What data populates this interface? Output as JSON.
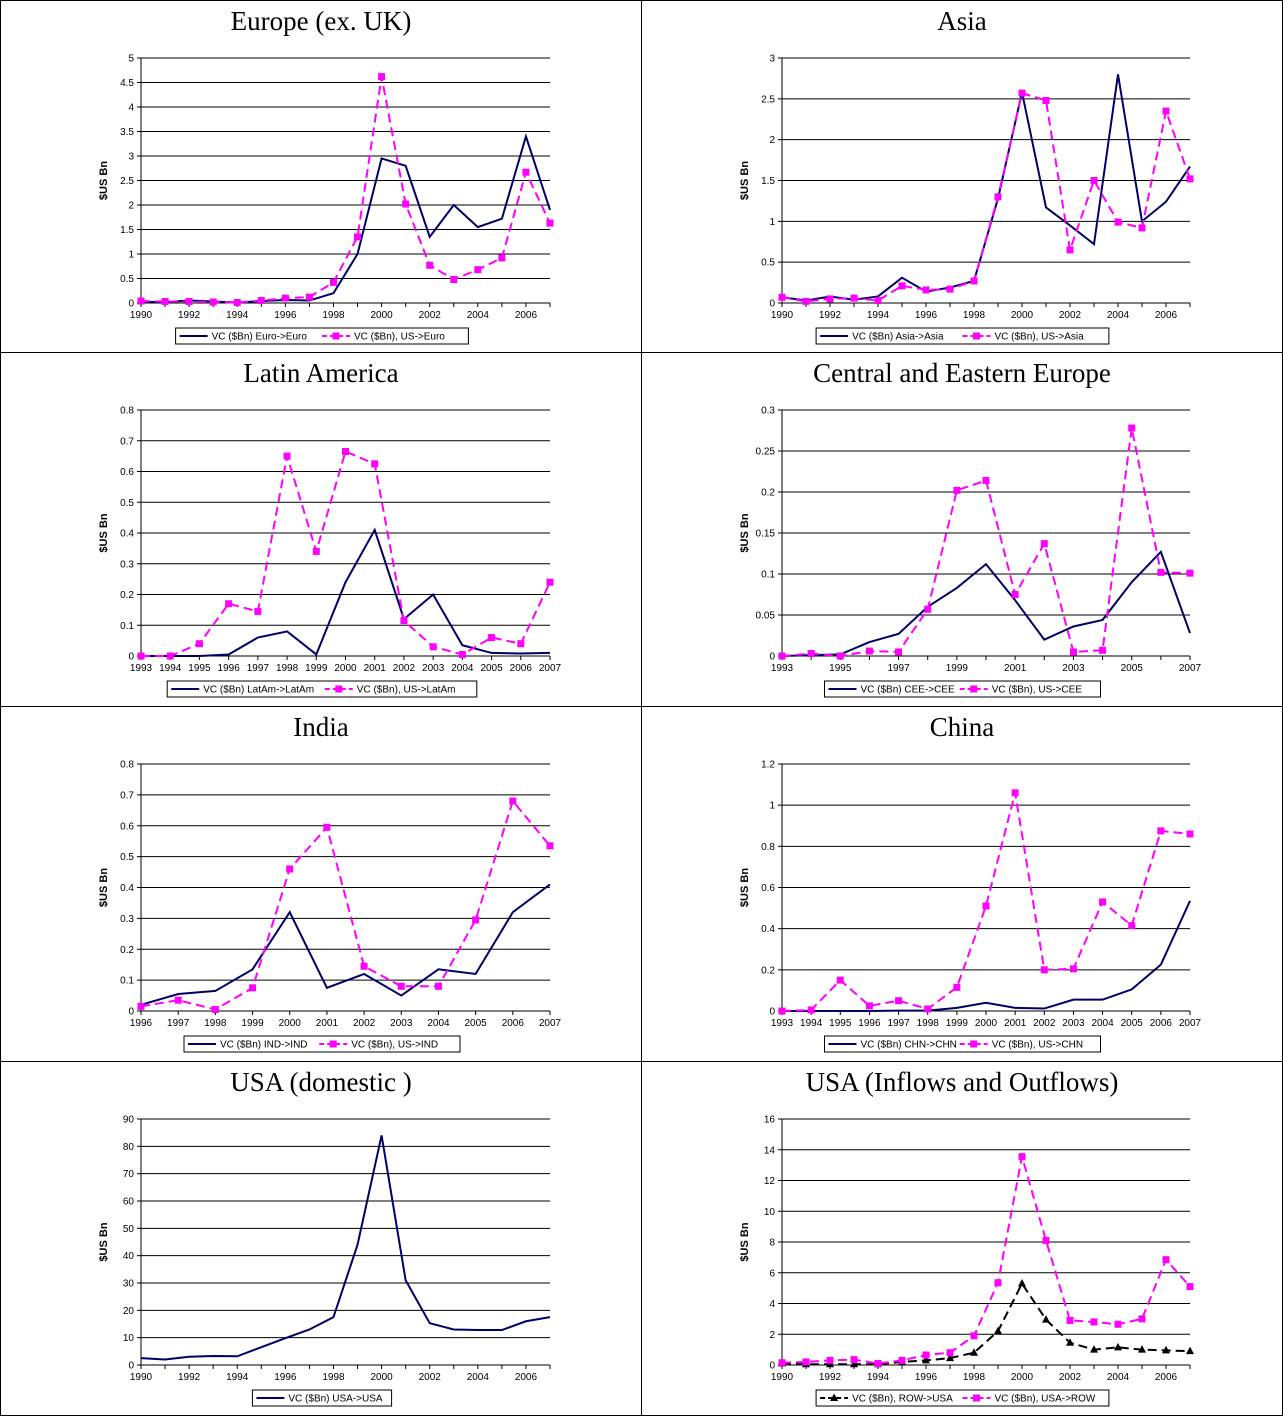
{
  "colors": {
    "navy": "#000066",
    "magenta": "#ff00ff",
    "black": "#000000"
  },
  "panels": [
    {
      "title": "Europe (ex. UK)",
      "chart_data": {
        "type": "line",
        "ylabel": "$US Bn",
        "x": [
          1990,
          1991,
          1992,
          1993,
          1994,
          1995,
          1996,
          1997,
          1998,
          1999,
          2000,
          2001,
          2002,
          2003,
          2004,
          2005,
          2006,
          2007
        ],
        "x_tick_labels": [
          "1990",
          "1992",
          "1994",
          "1996",
          "1998",
          "2000",
          "2002",
          "2004",
          "2006"
        ],
        "ylim": [
          0,
          5
        ],
        "y_ticks": [
          0,
          0.5,
          1,
          1.5,
          2,
          2.5,
          3,
          3.5,
          4,
          4.5,
          5
        ],
        "grid": true,
        "legend_position": "bottom",
        "series": [
          {
            "name": "VC ($Bn) Euro->Euro",
            "style": "solid",
            "marker": "none",
            "color": "#000066",
            "values": [
              0.02,
              0.02,
              0.05,
              0.03,
              0.01,
              0.04,
              0.06,
              0.05,
              0.2,
              1.0,
              2.95,
              2.8,
              1.35,
              2.0,
              1.55,
              1.72,
              3.4,
              1.9
            ]
          },
          {
            "name": "VC  ($Bn), US->Euro",
            "style": "dashed",
            "marker": "square",
            "color": "#ff00ff",
            "values": [
              0.04,
              0.03,
              0.03,
              0.02,
              0.01,
              0.05,
              0.1,
              0.12,
              0.42,
              1.35,
              4.62,
              2.02,
              0.77,
              0.48,
              0.68,
              0.92,
              2.67,
              1.63
            ]
          }
        ]
      }
    },
    {
      "title": "Asia",
      "chart_data": {
        "type": "line",
        "ylabel": "$US Bn",
        "x": [
          1990,
          1991,
          1992,
          1993,
          1994,
          1995,
          1996,
          1997,
          1998,
          1999,
          2000,
          2001,
          2002,
          2003,
          2004,
          2005,
          2006,
          2007
        ],
        "x_tick_labels": [
          "1990",
          "1992",
          "1994",
          "1996",
          "1998",
          "2000",
          "2002",
          "2004",
          "2006"
        ],
        "ylim": [
          0,
          3
        ],
        "y_ticks": [
          0,
          0.5,
          1,
          1.5,
          2,
          2.5,
          3
        ],
        "grid": true,
        "legend_position": "bottom",
        "series": [
          {
            "name": "VC ($Bn) Asia->Asia",
            "style": "solid",
            "marker": "none",
            "color": "#000066",
            "values": [
              0.07,
              0.03,
              0.08,
              0.04,
              0.08,
              0.31,
              0.14,
              0.19,
              0.27,
              1.28,
              2.58,
              1.17,
              0.95,
              0.72,
              2.8,
              1.0,
              1.24,
              1.67
            ]
          },
          {
            "name": "VC  ($Bn), US->Asia",
            "style": "dashed",
            "marker": "square",
            "color": "#ff00ff",
            "values": [
              0.07,
              0.02,
              0.05,
              0.06,
              0.03,
              0.21,
              0.16,
              0.17,
              0.27,
              1.3,
              2.57,
              2.48,
              0.65,
              1.5,
              0.99,
              0.92,
              2.35,
              1.52
            ]
          }
        ]
      }
    },
    {
      "title": "Latin America",
      "chart_data": {
        "type": "line",
        "ylabel": "$US Bn",
        "x": [
          1993,
          1994,
          1995,
          1996,
          1997,
          1998,
          1999,
          2000,
          2001,
          2002,
          2003,
          2004,
          2005,
          2006,
          2007
        ],
        "x_tick_labels": [
          "1993",
          "1994",
          "1995",
          "1996",
          "1997",
          "1998",
          "1999",
          "2000",
          "2001",
          "2002",
          "2003",
          "2004",
          "2005",
          "2006",
          "2007"
        ],
        "ylim": [
          0,
          0.8
        ],
        "y_ticks": [
          0,
          0.1,
          0.2,
          0.3,
          0.4,
          0.5,
          0.6,
          0.7,
          0.8
        ],
        "grid": true,
        "legend_position": "bottom",
        "series": [
          {
            "name": "VC ($Bn) LatAm->LatAm",
            "style": "solid",
            "marker": "none",
            "color": "#000066",
            "values": [
              0,
              0,
              0,
              0.005,
              0.06,
              0.08,
              0.005,
              0.24,
              0.41,
              0.12,
              0.2,
              0.035,
              0.01,
              0.008,
              0.01
            ]
          },
          {
            "name": "VC  ($Bn), US->LatAm",
            "style": "dashed",
            "marker": "square",
            "color": "#ff00ff",
            "values": [
              0,
              0,
              0.04,
              0.17,
              0.145,
              0.65,
              0.34,
              0.665,
              0.625,
              0.115,
              0.03,
              0.005,
              0.06,
              0.04,
              0.24
            ]
          }
        ]
      }
    },
    {
      "title": "Central and Eastern Europe",
      "chart_data": {
        "type": "line",
        "ylabel": "$US Bn",
        "x": [
          1993,
          1994,
          1995,
          1996,
          1997,
          1998,
          1999,
          2000,
          2001,
          2002,
          2003,
          2004,
          2005,
          2006,
          2007
        ],
        "x_tick_labels": [
          "1993",
          "1995",
          "1997",
          "1999",
          "2001",
          "2003",
          "2005",
          "2007"
        ],
        "ylim": [
          0,
          0.3
        ],
        "y_ticks": [
          0,
          0.05,
          0.1,
          0.15,
          0.2,
          0.25,
          0.3
        ],
        "grid": true,
        "legend_position": "bottom",
        "series": [
          {
            "name": "VC ($Bn) CEE->CEE",
            "style": "solid",
            "marker": "none",
            "color": "#000066",
            "values": [
              0,
              0.001,
              0.002,
              0.017,
              0.027,
              0.06,
              0.083,
              0.112,
              0.068,
              0.02,
              0.036,
              0.044,
              0.09,
              0.127,
              0.028
            ]
          },
          {
            "name": "VC  ($Bn), US->CEE",
            "style": "dashed",
            "marker": "square",
            "color": "#ff00ff",
            "values": [
              0,
              0.003,
              0,
              0.006,
              0.005,
              0.057,
              0.202,
              0.214,
              0.075,
              0.137,
              0.005,
              0.007,
              0.278,
              0.102,
              0.101
            ]
          }
        ]
      }
    },
    {
      "title": "India",
      "chart_data": {
        "type": "line",
        "ylabel": "$US Bn",
        "x": [
          1996,
          1997,
          1998,
          1999,
          2000,
          2001,
          2002,
          2003,
          2004,
          2005,
          2006,
          2007
        ],
        "x_tick_labels": [
          "1996",
          "1997",
          "1998",
          "1999",
          "2000",
          "2001",
          "2002",
          "2003",
          "2004",
          "2005",
          "2006",
          "2007"
        ],
        "ylim": [
          0,
          0.8
        ],
        "y_ticks": [
          0,
          0.1,
          0.2,
          0.3,
          0.4,
          0.5,
          0.6,
          0.7,
          0.8
        ],
        "grid": true,
        "legend_position": "bottom",
        "series": [
          {
            "name": "VC ($Bn) IND->IND",
            "style": "solid",
            "marker": "none",
            "color": "#000066",
            "values": [
              0.02,
              0.055,
              0.065,
              0.135,
              0.32,
              0.075,
              0.12,
              0.05,
              0.135,
              0.12,
              0.32,
              0.41
            ]
          },
          {
            "name": "VC  ($Bn), US->IND",
            "style": "dashed",
            "marker": "square",
            "color": "#ff00ff",
            "values": [
              0.015,
              0.035,
              0.005,
              0.075,
              0.46,
              0.595,
              0.145,
              0.08,
              0.08,
              0.295,
              0.68,
              0.535
            ]
          }
        ]
      }
    },
    {
      "title": "China",
      "chart_data": {
        "type": "line",
        "ylabel": "$US Bn",
        "x": [
          1993,
          1994,
          1995,
          1996,
          1997,
          1998,
          1999,
          2000,
          2001,
          2002,
          2003,
          2004,
          2005,
          2006,
          2007
        ],
        "x_tick_labels": [
          "1993",
          "1994",
          "1995",
          "1996",
          "1997",
          "1998",
          "1999",
          "2000",
          "2001",
          "2002",
          "2003",
          "2004",
          "2005",
          "2006",
          "2007"
        ],
        "ylim": [
          0,
          1.2
        ],
        "y_ticks": [
          0,
          0.2,
          0.4,
          0.6,
          0.8,
          1,
          1.2
        ],
        "grid": true,
        "legend_position": "bottom",
        "series": [
          {
            "name": "VC ($Bn) CHN->CHN",
            "style": "solid",
            "marker": "none",
            "color": "#000066",
            "values": [
              0,
              0,
              0,
              0,
              0.002,
              0.002,
              0.015,
              0.04,
              0.015,
              0.012,
              0.055,
              0.055,
              0.105,
              0.225,
              0.535
            ]
          },
          {
            "name": "VC  ($Bn), US->CHN",
            "style": "dashed",
            "marker": "square",
            "color": "#ff00ff",
            "values": [
              0,
              0.005,
              0.15,
              0.025,
              0.05,
              0.01,
              0.115,
              0.51,
              1.06,
              0.2,
              0.205,
              0.53,
              0.415,
              0.875,
              0.86
            ]
          }
        ]
      }
    },
    {
      "title": "USA (domestic )",
      "chart_data": {
        "type": "line",
        "ylabel": "$US Bn",
        "x": [
          1990,
          1991,
          1992,
          1993,
          1994,
          1995,
          1996,
          1997,
          1998,
          1999,
          2000,
          2001,
          2002,
          2003,
          2004,
          2005,
          2006,
          2007
        ],
        "x_tick_labels": [
          "1990",
          "1992",
          "1994",
          "1996",
          "1998",
          "2000",
          "2002",
          "2004",
          "2006"
        ],
        "ylim": [
          0,
          90
        ],
        "y_ticks": [
          0,
          10,
          20,
          30,
          40,
          50,
          60,
          70,
          80,
          90
        ],
        "grid": true,
        "legend_position": "bottom",
        "series": [
          {
            "name": "VC ($Bn) USA->USA",
            "style": "solid",
            "marker": "none",
            "color": "#000066",
            "values": [
              2.5,
              2.0,
              3.0,
              3.3,
              3.2,
              6.5,
              9.8,
              13.0,
              17.5,
              44.0,
              84.0,
              31.0,
              15.3,
              13.0,
              12.8,
              12.8,
              16.0,
              17.5
            ]
          }
        ]
      }
    },
    {
      "title": "USA (Inflows and Outflows)",
      "chart_data": {
        "type": "line",
        "ylabel": "$US Bn",
        "x": [
          1990,
          1991,
          1992,
          1993,
          1994,
          1995,
          1996,
          1997,
          1998,
          1999,
          2000,
          2001,
          2002,
          2003,
          2004,
          2005,
          2006,
          2007
        ],
        "x_tick_labels": [
          "1990",
          "1992",
          "1994",
          "1996",
          "1998",
          "2000",
          "2002",
          "2004",
          "2006"
        ],
        "ylim": [
          0,
          16
        ],
        "y_ticks": [
          0,
          2,
          4,
          6,
          8,
          10,
          12,
          14,
          16
        ],
        "grid": true,
        "legend_position": "bottom",
        "series": [
          {
            "name": "VC  ($Bn), ROW->USA",
            "style": "dashed",
            "marker": "triangle",
            "color": "#000000",
            "values": [
              0.1,
              0.05,
              0.05,
              0.05,
              0.05,
              0.2,
              0.3,
              0.45,
              0.8,
              2.2,
              5.3,
              2.95,
              1.45,
              1.0,
              1.15,
              1.0,
              0.95,
              0.9
            ]
          },
          {
            "name": "VC  ($Bn), USA->ROW",
            "style": "dashed",
            "marker": "square",
            "color": "#ff00ff",
            "values": [
              0.15,
              0.2,
              0.3,
              0.35,
              0.1,
              0.3,
              0.65,
              0.8,
              1.9,
              5.35,
              13.55,
              8.1,
              2.9,
              2.8,
              2.65,
              3.0,
              6.85,
              5.1
            ]
          }
        ]
      }
    }
  ]
}
